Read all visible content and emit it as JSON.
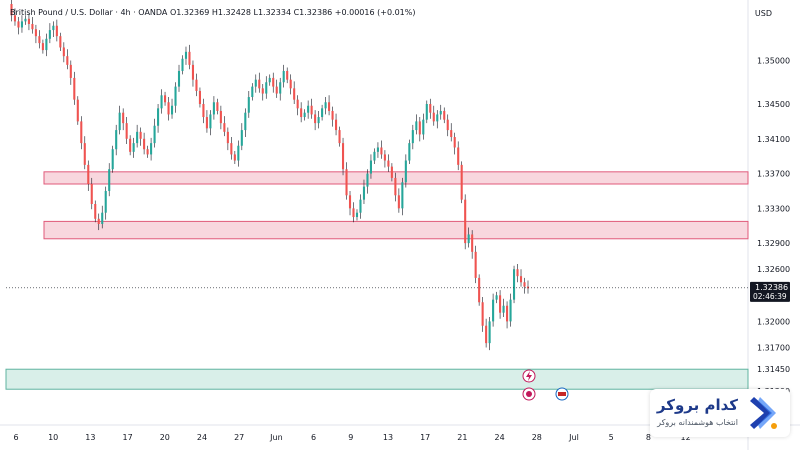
{
  "header": {
    "symbol": "British Pound / U.S. Dollar",
    "interval": "4h",
    "source": "OANDA",
    "ohlc": "O1.32369  H1.32428  L1.32334  C1.32386  +0.00016 (+0.01%)",
    "currency": "USD"
  },
  "price_label": {
    "price": "1.32386",
    "countdown": "02:46:39"
  },
  "logo": {
    "title": "کدام بروکر",
    "subtitle": "انتخاب هوشمندانه بروکر",
    "mark_icon": "chevron-right-logo-icon"
  },
  "chart_data": {
    "type": "candlestick",
    "y_ticks": [
      "1.35000",
      "1.34500",
      "1.34100",
      "1.33700",
      "1.33300",
      "1.32900",
      "1.32600",
      "1.32000",
      "1.31700",
      "1.31450",
      "1.31200"
    ],
    "x_ticks": [
      "6",
      "10",
      "13",
      "17",
      "20",
      "24",
      "27",
      "Jun",
      "6",
      "9",
      "13",
      "17",
      "21",
      "24",
      "28",
      "Jul",
      "5",
      "8",
      "12"
    ],
    "ylim": [
      1.3105,
      1.3565
    ],
    "current_price": 1.32386,
    "zones": [
      {
        "from": 1.3358,
        "to": 1.3372,
        "color": "#f8d7de",
        "border": "#e05a7a"
      },
      {
        "from": 1.3295,
        "to": 1.3315,
        "color": "#f8d7de",
        "border": "#e05a7a"
      },
      {
        "from": 1.3122,
        "to": 1.3145,
        "color": "#d9efe9",
        "border": "#5fb3a0"
      }
    ],
    "colors": {
      "up": "#26a69a",
      "down": "#ef5350",
      "wick": "#131722"
    },
    "path": [
      1.3565,
      1.3552,
      1.3545,
      1.3538,
      1.3545,
      1.3548,
      1.3542,
      1.3536,
      1.3528,
      1.352,
      1.3512,
      1.3525,
      1.3535,
      1.354,
      1.3528,
      1.3515,
      1.3505,
      1.3495,
      1.348,
      1.3455,
      1.343,
      1.3405,
      1.338,
      1.3358,
      1.3335,
      1.3318,
      1.3312,
      1.3325,
      1.335,
      1.3375,
      1.3398,
      1.342,
      1.344,
      1.3428,
      1.341,
      1.3395,
      1.3405,
      1.3418,
      1.341,
      1.3398,
      1.3392,
      1.3405,
      1.3425,
      1.3445,
      1.346,
      1.3452,
      1.3438,
      1.3448,
      1.347,
      1.3488,
      1.3502,
      1.351,
      1.3495,
      1.3478,
      1.3465,
      1.345,
      1.3435,
      1.3422,
      1.3438,
      1.3452,
      1.3442,
      1.3428,
      1.3418,
      1.3405,
      1.3392,
      1.3385,
      1.3402,
      1.342,
      1.344,
      1.3458,
      1.347,
      1.3478,
      1.3468,
      1.3462,
      1.3475,
      1.348,
      1.347,
      1.3462,
      1.3475,
      1.3488,
      1.3478,
      1.3468,
      1.3455,
      1.3445,
      1.3435,
      1.344,
      1.3448,
      1.3438,
      1.3428,
      1.3435,
      1.3445,
      1.3452,
      1.3442,
      1.3432,
      1.342,
      1.3405,
      1.3375,
      1.3345,
      1.333,
      1.332,
      1.3325,
      1.334,
      1.3355,
      1.337,
      1.3385,
      1.3395,
      1.34,
      1.3392,
      1.3385,
      1.3378,
      1.3365,
      1.3345,
      1.333,
      1.336,
      1.3385,
      1.3405,
      1.342,
      1.343,
      1.3415,
      1.3432,
      1.345,
      1.344,
      1.343,
      1.3438,
      1.3442,
      1.3432,
      1.342,
      1.3412,
      1.34,
      1.338,
      1.334,
      1.329,
      1.33,
      1.328,
      1.325,
      1.3222,
      1.3195,
      1.3175,
      1.32,
      1.3225,
      1.323,
      1.321,
      1.3218,
      1.32,
      1.3225,
      1.326,
      1.3252,
      1.3245,
      1.324,
      1.3238
    ]
  }
}
